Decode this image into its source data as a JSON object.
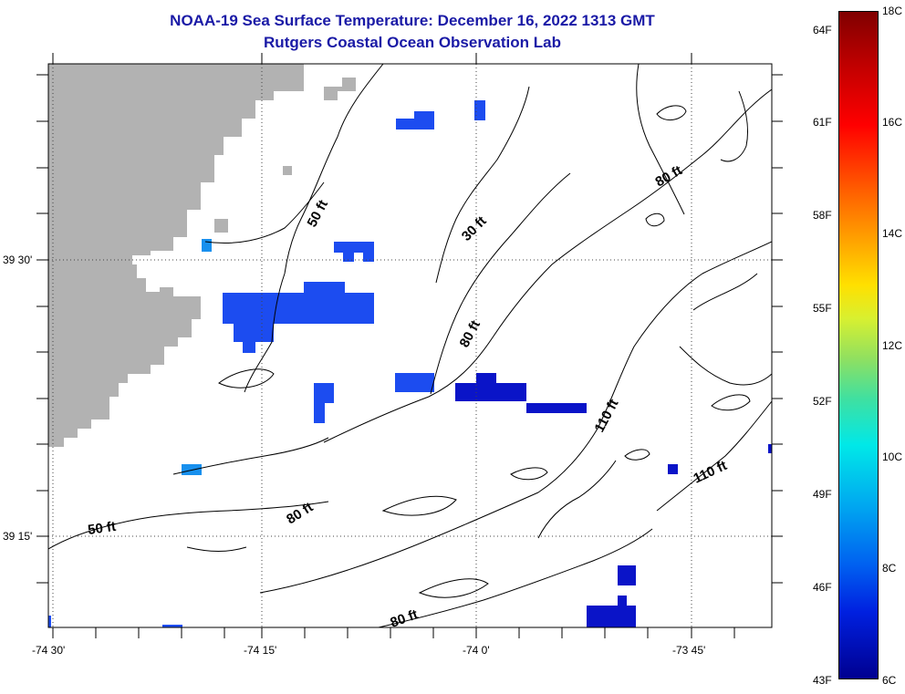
{
  "header": {
    "title": "NOAA-19 Sea Surface Temperature:  December 16, 2022 1313 GMT",
    "subtitle": "Rutgers Coastal Ocean Observation Lab"
  },
  "axes": {
    "x_labels": [
      "-74 30'",
      "-74 15'",
      "-74 0'",
      "-73 45'"
    ],
    "y_labels": [
      "39 30'",
      "39 15'"
    ]
  },
  "contours": {
    "labels": [
      "50 ft",
      "30 ft",
      "80 ft",
      "80 ft",
      "110 ft",
      "110 ft",
      "50 ft",
      "80 ft",
      "80 ft"
    ]
  },
  "colorbar": {
    "fahrenheit": [
      "64F",
      "61F",
      "58F",
      "55F",
      "52F",
      "49F",
      "46F",
      "43F"
    ],
    "celsius": [
      "18C",
      "16C",
      "14C",
      "12C",
      "10C",
      "8C",
      "6C"
    ]
  },
  "colors": {
    "title": "#1a1aa6",
    "land": "#b2b2b2",
    "sst_blue": "#1c4cf0",
    "sst_deep_blue": "#0a14c8",
    "sst_light_blue": "#1890ee"
  }
}
